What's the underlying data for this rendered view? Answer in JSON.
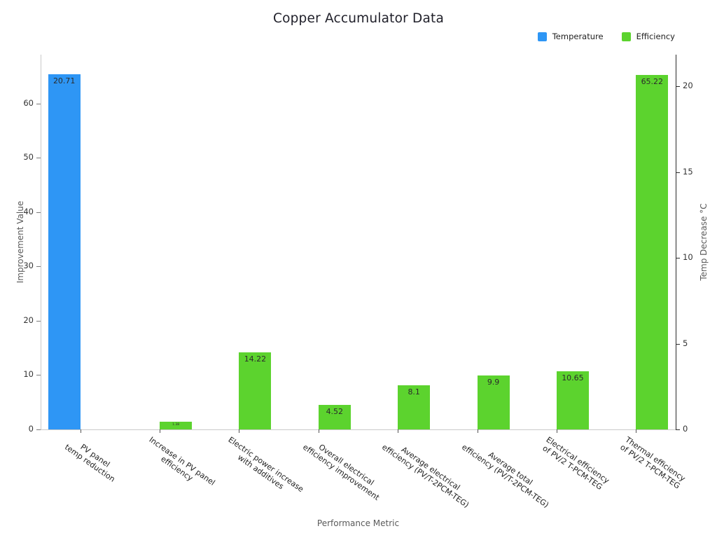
{
  "chart": {
    "title": "Copper Accumulator Data",
    "xlabel": "Performance Metric",
    "ylabel_left": "Improvement Value",
    "ylabel_right": "Temp Decrease °C",
    "legend": [
      {
        "name": "Temperature",
        "color": "#2E96F5"
      },
      {
        "name": "Efficiency",
        "color": "#5CD32E"
      }
    ]
  },
  "chart_data": {
    "type": "bar",
    "title": "Copper Accumulator Data",
    "xlabel": "Performance Metric",
    "ylabel_left": "Improvement Value",
    "ylabel_right": "Temp Decrease °C",
    "grid": false,
    "legend_position": "top-right",
    "categories": [
      [
        "PV panel",
        "temp reduction"
      ],
      [
        "Increase in PV panel",
        "efficiency"
      ],
      [
        "Electric power increase",
        "with additives"
      ],
      [
        "Overall electrical",
        "efficiency improvement"
      ],
      [
        "Average electrical",
        "efficiency (PV/T-2PCM-TEG)"
      ],
      [
        "Average total",
        "efficiency (PV/T-2PCM-TEG)"
      ],
      [
        "Electrical efficiency",
        "of PV/2 T-PCM-TEG"
      ],
      [
        "Thermal efficiency",
        "of PV/2 T-PCM-TEG"
      ]
    ],
    "series": [
      {
        "name": "Temperature",
        "color": "#2E96F5",
        "axis": "right",
        "values": [
          20.71,
          null,
          null,
          null,
          null,
          null,
          null,
          null
        ],
        "labels": [
          "20.71",
          null,
          null,
          null,
          null,
          null,
          null,
          null
        ]
      },
      {
        "name": "Efficiency",
        "color": "#5CD32E",
        "axis": "left",
        "values": [
          null,
          1.38,
          14.22,
          4.52,
          8.1,
          9.9,
          10.65,
          65.22
        ],
        "labels": [
          null,
          "1.38",
          "14.22",
          "4.52",
          "8.1",
          "9.9",
          "10.65",
          "65.22"
        ]
      }
    ],
    "left_axis": {
      "ticks": [
        0,
        10,
        20,
        30,
        40,
        50,
        60
      ],
      "range": [
        0,
        69
      ]
    },
    "right_axis": {
      "ticks": [
        0,
        5,
        10,
        15,
        20
      ],
      "range": [
        0,
        21.84
      ]
    }
  }
}
